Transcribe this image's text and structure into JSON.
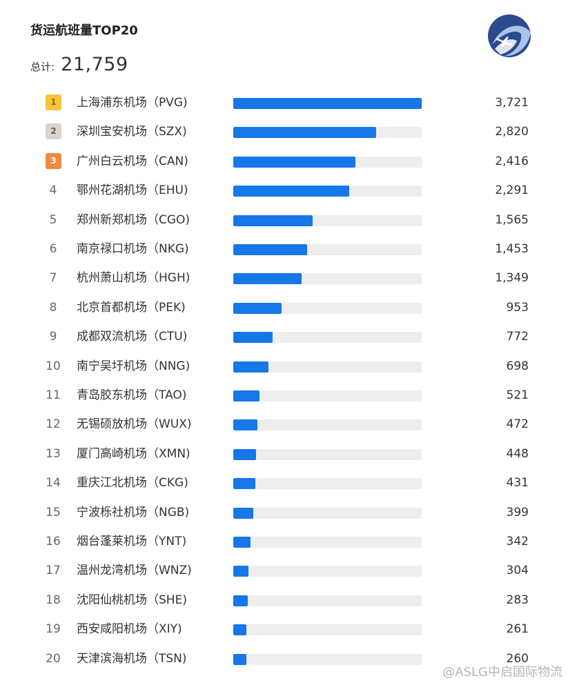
{
  "header": {
    "title": "货运航班量TOP20",
    "total_label": "总计:",
    "total_value": "21,759"
  },
  "watermark": "@ASLG中启国际物流",
  "colors": {
    "bar": "#1677e8",
    "track": "#eeeeee",
    "rank1": "#f7c33c",
    "rank2": "#ddd3cf",
    "rank3": "#f08a3e"
  },
  "chart_data": {
    "type": "bar",
    "orientation": "horizontal",
    "title": "货运航班量TOP20",
    "xlim": [
      0,
      3721
    ],
    "ranks": [
      "1",
      "2",
      "3",
      "4",
      "5",
      "6",
      "7",
      "8",
      "9",
      "10",
      "11",
      "12",
      "13",
      "14",
      "15",
      "16",
      "17",
      "18",
      "19",
      "20"
    ],
    "categories": [
      "上海浦东机场（PVG)",
      "深圳宝安机场（SZX)",
      "广州白云机场（CAN)",
      "鄂州花湖机场（EHU)",
      "郑州新郑机场（CGO)",
      "南京禄口机场（NKG)",
      "杭州萧山机场（HGH)",
      "北京首都机场（PEK)",
      "成都双流机场（CTU)",
      "南宁吴圩机场（NNG)",
      "青岛胶东机场（TAO)",
      "无锡硕放机场（WUX)",
      "厦门高崎机场（XMN)",
      "重庆江北机场（CKG)",
      "宁波栎社机场（NGB)",
      "烟台蓬莱机场（YNT)",
      "温州龙湾机场（WNZ)",
      "沈阳仙桃机场（SHE)",
      "西安咸阳机场（XIY)",
      "天津滨海机场（TSN)"
    ],
    "values": [
      3721,
      2820,
      2416,
      2291,
      1565,
      1453,
      1349,
      953,
      772,
      698,
      521,
      472,
      448,
      431,
      399,
      342,
      304,
      283,
      261,
      260
    ],
    "value_labels": [
      "3,721",
      "2,820",
      "2,416",
      "2,291",
      "1,565",
      "1,453",
      "1,349",
      "953",
      "772",
      "698",
      "521",
      "472",
      "448",
      "431",
      "399",
      "342",
      "304",
      "283",
      "261",
      "260"
    ]
  }
}
